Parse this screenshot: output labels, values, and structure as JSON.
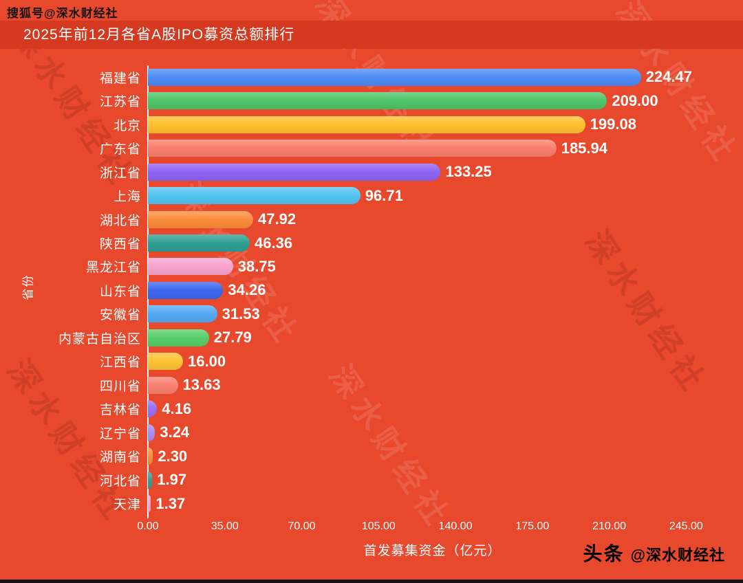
{
  "watermark": {
    "top_left": "搜狐号@深水财经社",
    "diagonal": "深水财经社",
    "bottom_brand_bold": "头条",
    "bottom_brand_rest": "@深水财经社"
  },
  "chart_data": {
    "type": "bar",
    "orientation": "horizontal",
    "title": "2025年前12月各省A股IPO募资总额排行",
    "xlabel": "首发募集资金（亿元）",
    "ylabel": "省份",
    "xlim": [
      0,
      259
    ],
    "grid": false,
    "legend": "none",
    "x_ticks": [
      "0.00",
      "35.00",
      "70.00",
      "105.00",
      "140.00",
      "175.00",
      "210.00",
      "245.00"
    ],
    "x_tick_values": [
      0,
      35,
      70,
      105,
      140,
      175,
      210,
      245
    ],
    "categories": [
      "福建省",
      "江苏省",
      "北京",
      "广东省",
      "浙江省",
      "上海",
      "湖北省",
      "陕西省",
      "黑龙江省",
      "山东省",
      "安徽省",
      "内蒙古自治区",
      "江西省",
      "四川省",
      "吉林省",
      "辽宁省",
      "湖南省",
      "河北省",
      "天津"
    ],
    "values": [
      224.47,
      209.0,
      199.08,
      185.94,
      133.25,
      96.71,
      47.92,
      46.36,
      38.75,
      34.26,
      31.53,
      27.79,
      16.0,
      13.63,
      4.16,
      3.24,
      2.3,
      1.97,
      1.37
    ],
    "value_labels": [
      "224.47",
      "209.00",
      "199.08",
      "185.94",
      "133.25",
      "96.71",
      "47.92",
      "46.36",
      "38.75",
      "34.26",
      "31.53",
      "27.79",
      "16.00",
      "13.63",
      "4.16",
      "3.24",
      "2.30",
      "1.97",
      "1.37"
    ],
    "bar_colors": [
      "#4e8bf5",
      "#4fc46a",
      "#ffc02e",
      "#f97e6d",
      "#8f63f2",
      "#53c3f0",
      "#fb8b3a",
      "#2f9f93",
      "#f8a3ce",
      "#3d66ee",
      "#55a9f2",
      "#57ce68",
      "#ffc233",
      "#f98070",
      "#9b6ef4",
      "#a78df2",
      "#fb8d3d",
      "#32a096",
      "#f9a5d0"
    ]
  },
  "colors": {
    "background": "#e8482c",
    "title_band": "#d53a20",
    "axis": "#ffffff",
    "text": "#ffffff",
    "top_tag_text": "#161616",
    "brand_text": "#000000",
    "bottom_strip": "#141414"
  }
}
